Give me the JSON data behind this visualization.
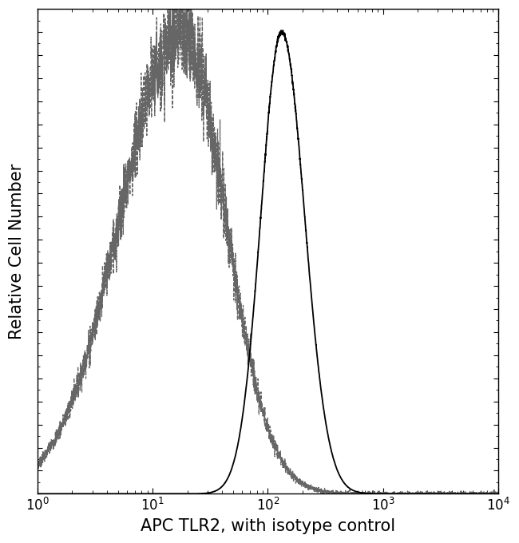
{
  "xlabel": "APC TLR2, with isotype control",
  "ylabel": "Relative Cell Number",
  "background_color": "#ffffff",
  "plot_bg_color": "#ffffff",
  "border_color": "#000000",
  "isotype_color": "#666666",
  "antibody_color": "#000000",
  "isotype_peak_log": 1.25,
  "isotype_sigma": 0.38,
  "antibody_peak_log": 2.12,
  "antibody_sigma": 0.18,
  "xlabel_fontsize": 15,
  "ylabel_fontsize": 15,
  "tick_fontsize": 12,
  "figsize": [
    6.5,
    6.8
  ],
  "dpi": 100
}
